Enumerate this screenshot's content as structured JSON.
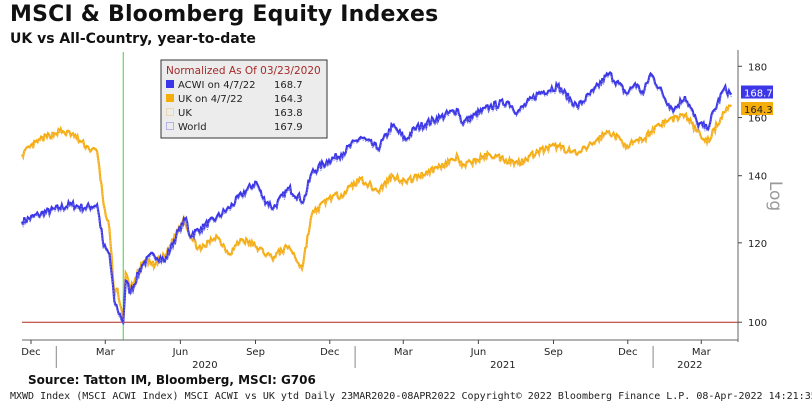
{
  "header": {
    "title": "MSCI & Bloomberg Equity Indexes",
    "subtitle": "UK vs All-Country, year-to-date"
  },
  "source": "Source: Tatton IM, Bloomberg, MSCI: G706",
  "footer": "MXWD Index (MSCI ACWI Index) MSCI ACWI vs UK ytd  Daily 23MAR2020-08APR2022 Copyright© 2022 Bloomberg Finance L.P.  08-Apr-2022 14:21:35",
  "colors": {
    "acwi": "#3b37e8",
    "uk": "#f5ad0b",
    "uk_dotted": "#f5c070",
    "world_dotted": "#7b79e0",
    "baseline": "#b3261e",
    "marker": "#3fd23f",
    "legend_bg": "#ececec",
    "legend_title": "#a52a2a"
  },
  "chart_data": {
    "type": "line",
    "y_scale": "log",
    "y_axis_label": "Log",
    "ylim": [
      96,
      186
    ],
    "y_ticks": [
      100,
      120,
      140,
      160,
      180
    ],
    "baseline_value": 100,
    "normalization_date": "2020-03-23",
    "x_ticks": [
      {
        "label": "Dec",
        "date": "2019-12-01"
      },
      {
        "label": "Mar",
        "date": "2020-03-01"
      },
      {
        "label": "Jun",
        "date": "2020-06-01"
      },
      {
        "label": "Sep",
        "date": "2020-09-01"
      },
      {
        "label": "Dec",
        "date": "2020-12-01"
      },
      {
        "label": "Mar",
        "date": "2021-03-01"
      },
      {
        "label": "Jun",
        "date": "2021-06-01"
      },
      {
        "label": "Sep",
        "date": "2021-09-01"
      },
      {
        "label": "Dec",
        "date": "2021-12-01"
      },
      {
        "label": "Mar",
        "date": "2022-03-01"
      }
    ],
    "year_labels": [
      {
        "label": "2020",
        "date": "2020-07-01"
      },
      {
        "label": "2021",
        "date": "2021-07-01"
      },
      {
        "label": "2022",
        "date": "2022-02-15"
      }
    ],
    "xlim": [
      "2019-11-20",
      "2022-04-15"
    ],
    "legend": {
      "title": "Normalized As Of 03/23/2020",
      "entries": [
        {
          "label": "ACWI on 4/7/22",
          "value": "168.7",
          "style": "solid",
          "series": "acwi"
        },
        {
          "label": "UK on 4/7/22",
          "value": "164.3",
          "style": "solid",
          "series": "uk"
        },
        {
          "label": "UK",
          "value": "163.8",
          "style": "dotted",
          "series": "uk_dotted"
        },
        {
          "label": "World",
          "value": "167.9",
          "style": "dotted",
          "series": "world_dotted"
        }
      ]
    },
    "last_value_tags": [
      {
        "value": "168.7",
        "series": "acwi"
      },
      {
        "value": "164.3",
        "series": "uk"
      }
    ],
    "series": [
      {
        "name": "ACWI on 4/7/22",
        "key": "acwi",
        "points": [
          [
            "2019-11-20",
            126
          ],
          [
            "2019-12-10",
            128
          ],
          [
            "2020-01-05",
            130
          ],
          [
            "2020-01-20",
            131
          ],
          [
            "2020-02-05",
            130
          ],
          [
            "2020-02-20",
            131
          ],
          [
            "2020-02-28",
            119
          ],
          [
            "2020-03-06",
            117
          ],
          [
            "2020-03-12",
            105
          ],
          [
            "2020-03-16",
            103
          ],
          [
            "2020-03-23",
            100
          ],
          [
            "2020-03-26",
            110
          ],
          [
            "2020-04-01",
            107
          ],
          [
            "2020-04-15",
            114
          ],
          [
            "2020-04-29",
            117
          ],
          [
            "2020-05-13",
            115
          ],
          [
            "2020-05-27",
            122
          ],
          [
            "2020-06-08",
            127
          ],
          [
            "2020-06-12",
            122
          ],
          [
            "2020-06-26",
            124
          ],
          [
            "2020-07-15",
            127
          ],
          [
            "2020-07-31",
            130
          ],
          [
            "2020-08-15",
            134
          ],
          [
            "2020-09-02",
            138
          ],
          [
            "2020-09-10",
            133
          ],
          [
            "2020-09-23",
            130
          ],
          [
            "2020-10-12",
            136
          ],
          [
            "2020-10-30",
            132
          ],
          [
            "2020-11-09",
            141
          ],
          [
            "2020-11-30",
            145
          ],
          [
            "2020-12-15",
            147
          ],
          [
            "2021-01-08",
            153
          ],
          [
            "2021-01-29",
            149
          ],
          [
            "2021-02-16",
            157
          ],
          [
            "2021-03-04",
            152
          ],
          [
            "2021-03-15",
            156
          ],
          [
            "2021-04-15",
            160
          ],
          [
            "2021-05-07",
            163
          ],
          [
            "2021-05-12",
            158
          ],
          [
            "2021-06-15",
            164
          ],
          [
            "2021-07-07",
            166
          ],
          [
            "2021-07-19",
            162
          ],
          [
            "2021-08-13",
            169
          ],
          [
            "2021-09-06",
            172
          ],
          [
            "2021-09-30",
            164
          ],
          [
            "2021-10-20",
            170
          ],
          [
            "2021-11-08",
            177
          ],
          [
            "2021-11-30",
            169
          ],
          [
            "2021-12-10",
            173
          ],
          [
            "2021-12-20",
            169
          ],
          [
            "2021-12-29",
            177
          ],
          [
            "2022-01-20",
            165
          ],
          [
            "2022-01-27",
            163
          ],
          [
            "2022-02-09",
            168
          ],
          [
            "2022-02-24",
            158
          ],
          [
            "2022-03-08",
            156
          ],
          [
            "2022-03-29",
            171
          ],
          [
            "2022-04-07",
            168.7
          ]
        ]
      },
      {
        "name": "UK on 4/7/22",
        "key": "uk",
        "points": [
          [
            "2019-11-20",
            147
          ],
          [
            "2019-12-12",
            152
          ],
          [
            "2020-01-05",
            155
          ],
          [
            "2020-01-20",
            154
          ],
          [
            "2020-02-10",
            149
          ],
          [
            "2020-02-20",
            148
          ],
          [
            "2020-02-28",
            131
          ],
          [
            "2020-03-06",
            124
          ],
          [
            "2020-03-12",
            106
          ],
          [
            "2020-03-16",
            108
          ],
          [
            "2020-03-23",
            100
          ],
          [
            "2020-03-26",
            112
          ],
          [
            "2020-04-01",
            108
          ],
          [
            "2020-04-17",
            115
          ],
          [
            "2020-05-01",
            114
          ],
          [
            "2020-05-15",
            117
          ],
          [
            "2020-06-05",
            127
          ],
          [
            "2020-06-15",
            121
          ],
          [
            "2020-06-26",
            118
          ],
          [
            "2020-07-15",
            122
          ],
          [
            "2020-07-31",
            117
          ],
          [
            "2020-08-15",
            121
          ],
          [
            "2020-09-01",
            119
          ],
          [
            "2020-09-21",
            116
          ],
          [
            "2020-10-12",
            119
          ],
          [
            "2020-10-28",
            113
          ],
          [
            "2020-11-09",
            128
          ],
          [
            "2020-11-30",
            133
          ],
          [
            "2020-12-15",
            134
          ],
          [
            "2021-01-08",
            139
          ],
          [
            "2021-01-29",
            135
          ],
          [
            "2021-02-16",
            140
          ],
          [
            "2021-03-04",
            138
          ],
          [
            "2021-04-15",
            143
          ],
          [
            "2021-05-07",
            146
          ],
          [
            "2021-05-12",
            143
          ],
          [
            "2021-06-15",
            147
          ],
          [
            "2021-07-19",
            144
          ],
          [
            "2021-08-13",
            148
          ],
          [
            "2021-09-06",
            150
          ],
          [
            "2021-09-30",
            147
          ],
          [
            "2021-10-20",
            151
          ],
          [
            "2021-11-08",
            155
          ],
          [
            "2021-11-30",
            150
          ],
          [
            "2021-12-20",
            152
          ],
          [
            "2022-01-05",
            157
          ],
          [
            "2022-01-20",
            159
          ],
          [
            "2022-02-09",
            161
          ],
          [
            "2022-02-24",
            155
          ],
          [
            "2022-03-08",
            151
          ],
          [
            "2022-03-29",
            162
          ],
          [
            "2022-04-07",
            164.3
          ]
        ]
      }
    ]
  }
}
